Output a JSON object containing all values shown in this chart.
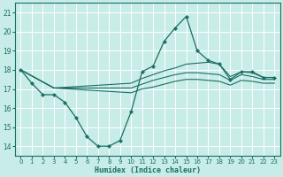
{
  "xlabel": "Humidex (Indice chaleur)",
  "ylabel": "",
  "bg_color": "#c8ece8",
  "grid_color": "#ffffff",
  "line_color": "#1a6e64",
  "xlim": [
    -0.5,
    23.5
  ],
  "ylim": [
    13.5,
    21.5
  ],
  "yticks": [
    14,
    15,
    16,
    17,
    18,
    19,
    20,
    21
  ],
  "xticks": [
    0,
    1,
    2,
    3,
    4,
    5,
    6,
    7,
    8,
    9,
    10,
    11,
    12,
    13,
    14,
    15,
    16,
    17,
    18,
    19,
    20,
    21,
    22,
    23
  ],
  "main_x": [
    0,
    1,
    2,
    3,
    4,
    5,
    6,
    7,
    8,
    9,
    10,
    11,
    12,
    13,
    14,
    15,
    16,
    17,
    18,
    19,
    20,
    21,
    22,
    23
  ],
  "main_y": [
    18.0,
    17.3,
    16.7,
    16.7,
    16.3,
    15.5,
    14.5,
    14.0,
    14.0,
    14.3,
    15.8,
    17.9,
    18.2,
    19.5,
    20.2,
    20.8,
    19.0,
    18.5,
    18.3,
    17.5,
    17.9,
    17.9,
    17.6,
    17.6
  ],
  "line2_x": [
    0,
    3,
    10,
    11,
    12,
    13,
    14,
    15,
    16,
    17,
    18,
    19,
    20,
    21,
    22,
    23
  ],
  "line2_y": [
    18.0,
    17.05,
    17.3,
    17.55,
    17.75,
    17.95,
    18.1,
    18.3,
    18.35,
    18.4,
    18.3,
    17.65,
    17.9,
    17.85,
    17.6,
    17.6
  ],
  "line3_x": [
    0,
    3,
    10,
    11,
    12,
    13,
    14,
    15,
    16,
    17,
    18,
    19,
    20,
    21,
    22,
    23
  ],
  "line3_y": [
    18.0,
    17.05,
    17.05,
    17.25,
    17.45,
    17.6,
    17.75,
    17.85,
    17.85,
    17.8,
    17.75,
    17.45,
    17.75,
    17.65,
    17.5,
    17.5
  ],
  "line4_x": [
    0,
    3,
    10,
    11,
    12,
    13,
    14,
    15,
    16,
    17,
    18,
    19,
    20,
    21,
    22,
    23
  ],
  "line4_y": [
    18.0,
    17.05,
    16.8,
    17.0,
    17.1,
    17.25,
    17.4,
    17.5,
    17.5,
    17.45,
    17.4,
    17.2,
    17.45,
    17.4,
    17.3,
    17.3
  ]
}
